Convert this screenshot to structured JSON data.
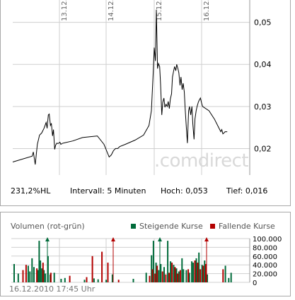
{
  "chart_data": [
    {
      "type": "line",
      "x_tick_labels": [
        "13.12.",
        "14.12.",
        "15.12.",
        "16.12."
      ],
      "y_ticks": [
        0.02,
        0.03,
        0.04,
        0.05
      ],
      "y_tick_labels": [
        "0,02",
        "0,03",
        "0,04",
        "0,05"
      ],
      "ylim": [
        0.0137,
        0.0553
      ],
      "xlim": [
        0,
        1
      ],
      "grid": true,
      "series": [
        {
          "x": [
            0.0,
            0.082,
            0.087,
            0.095,
            0.104,
            0.113,
            0.122,
            0.132,
            0.141,
            0.145,
            0.15,
            0.154,
            0.159,
            0.163,
            0.168,
            0.172,
            0.177,
            0.181,
            0.186,
            0.19,
            0.195,
            0.199,
            0.203,
            0.208,
            0.213,
            0.253,
            0.294,
            0.357,
            0.385,
            0.407,
            0.416,
            0.425,
            0.434,
            0.443,
            0.452,
            0.475,
            0.516,
            0.552,
            0.575,
            0.585,
            0.593,
            0.597,
            0.602,
            0.606,
            0.611,
            0.615,
            0.62,
            0.624,
            0.629,
            0.633,
            0.638,
            0.642,
            0.647,
            0.652,
            0.656,
            0.661,
            0.665,
            0.67,
            0.674,
            0.679,
            0.683,
            0.688,
            0.692,
            0.697,
            0.701,
            0.706,
            0.71,
            0.715,
            0.719,
            0.724,
            0.728,
            0.733,
            0.737,
            0.742,
            0.746,
            0.751,
            0.756,
            0.76,
            0.765,
            0.769,
            0.774,
            0.778,
            0.783,
            0.787,
            0.792,
            0.796,
            0.801,
            0.828,
            0.851,
            0.869,
            0.878,
            0.882,
            0.887,
            0.891,
            0.896,
            0.905
          ],
          "values": [
            0.0168,
            0.0182,
            0.0192,
            0.0162,
            0.021,
            0.0232,
            0.0237,
            0.0248,
            0.0262,
            0.0248,
            0.028,
            0.0282,
            0.0255,
            0.026,
            0.023,
            0.0245,
            0.0198,
            0.0208,
            0.0213,
            0.0212,
            0.0213,
            0.0215,
            0.021,
            0.0212,
            0.0213,
            0.0218,
            0.0226,
            0.023,
            0.021,
            0.018,
            0.0185,
            0.0195,
            0.02,
            0.02,
            0.0205,
            0.021,
            0.022,
            0.0232,
            0.0255,
            0.029,
            0.0385,
            0.044,
            0.0408,
            0.053,
            0.039,
            0.0402,
            0.0395,
            0.0352,
            0.028,
            0.031,
            0.032,
            0.0298,
            0.0305,
            0.03,
            0.0312,
            0.0295,
            0.0318,
            0.033,
            0.037,
            0.0385,
            0.0395,
            0.0385,
            0.04,
            0.039,
            0.038,
            0.035,
            0.037,
            0.034,
            0.0355,
            0.0335,
            0.029,
            0.0245,
            0.0213,
            0.029,
            0.03,
            0.028,
            0.03,
            0.0258,
            0.0222,
            0.027,
            0.029,
            0.03,
            0.031,
            0.0315,
            0.032,
            0.031,
            0.03,
            0.029,
            0.027,
            0.025,
            0.024,
            0.0245,
            0.0235,
            0.0237,
            0.024,
            0.024
          ]
        }
      ]
    },
    {
      "type": "bar",
      "ylabel": "Volumen (rot-grün)",
      "y_ticks": [
        0,
        20000,
        40000,
        60000,
        80000,
        100000
      ],
      "y_tick_labels": [
        "0",
        "20.000",
        "40.000",
        "60.000",
        "80.000",
        "100.000"
      ],
      "ylim": [
        0,
        100000
      ],
      "xlim": [
        0,
        1
      ],
      "series": [
        {
          "name": "Steigende Kurse",
          "x": [
            0.012,
            0.029,
            0.071,
            0.078,
            0.087,
            0.095,
            0.112,
            0.117,
            0.122,
            0.128,
            0.137,
            0.143,
            0.154,
            0.163,
            0.18,
            0.209,
            0.225,
            0.307,
            0.347,
            0.364,
            0.398,
            0.424,
            0.512,
            0.566,
            0.588,
            0.596,
            0.607,
            0.618,
            0.627,
            0.641,
            0.656,
            0.668,
            0.681,
            0.693,
            0.703,
            0.716,
            0.722,
            0.734,
            0.747,
            0.757,
            0.763,
            0.776,
            0.787,
            0.8,
            0.811,
            0.822,
            0.898,
            0.912,
            0.922
          ],
          "values": [
            42000,
            20000,
            38000,
            25000,
            55000,
            35000,
            28000,
            95000,
            50000,
            32000,
            28000,
            20000,
            60000,
            18000,
            22000,
            8000,
            10000,
            6000,
            9000,
            7000,
            6000,
            18000,
            8000,
            22000,
            62000,
            95000,
            45000,
            28000,
            42000,
            35000,
            95000,
            48000,
            40000,
            32000,
            25000,
            55000,
            30000,
            28000,
            22000,
            48000,
            45000,
            55000,
            68000,
            40000,
            50000,
            18000,
            38000,
            10000,
            22000
          ],
          "color": "#006b3a"
        },
        {
          "name": "Fallende Kurse",
          "x": [
            0.049,
            0.062,
            0.107,
            0.133,
            0.166,
            0.245,
            0.316,
            0.34,
            0.38,
            0.405,
            0.45,
            0.58,
            0.592,
            0.603,
            0.612,
            0.634,
            0.648,
            0.662,
            0.674,
            0.687,
            0.698,
            0.709,
            0.742,
            0.77,
            0.782,
            0.793,
            0.805,
            0.816,
            0.888
          ],
          "values": [
            28000,
            40000,
            32000,
            45000,
            22000,
            15000,
            12000,
            60000,
            70000,
            45000,
            6000,
            15000,
            30000,
            20000,
            38000,
            25000,
            18000,
            22000,
            45000,
            35000,
            20000,
            28000,
            30000,
            50000,
            45000,
            30000,
            38000,
            42000,
            30000
          ],
          "color": "#b30000"
        }
      ]
    }
  ],
  "price_stats": {
    "change": "231,2%HL",
    "interval": "Intervall: 5 Minuten",
    "high": "Hoch:  0,053",
    "low": "Tief:  0,016"
  },
  "volume_panel": {
    "title": "Volumen (rot-grün)",
    "legend_rising": "Steigende Kurse",
    "legend_falling": "Fallende Kurse",
    "timestamp": "16.12.2010 17:45 Uhr"
  },
  "watermark": ".comdirect",
  "colors": {
    "price_line": "#000000",
    "grid": "#cfcfcf",
    "rising": "#006b3a",
    "falling": "#b30000",
    "marker_green": "#006b3a",
    "marker_red": "#b30000"
  }
}
